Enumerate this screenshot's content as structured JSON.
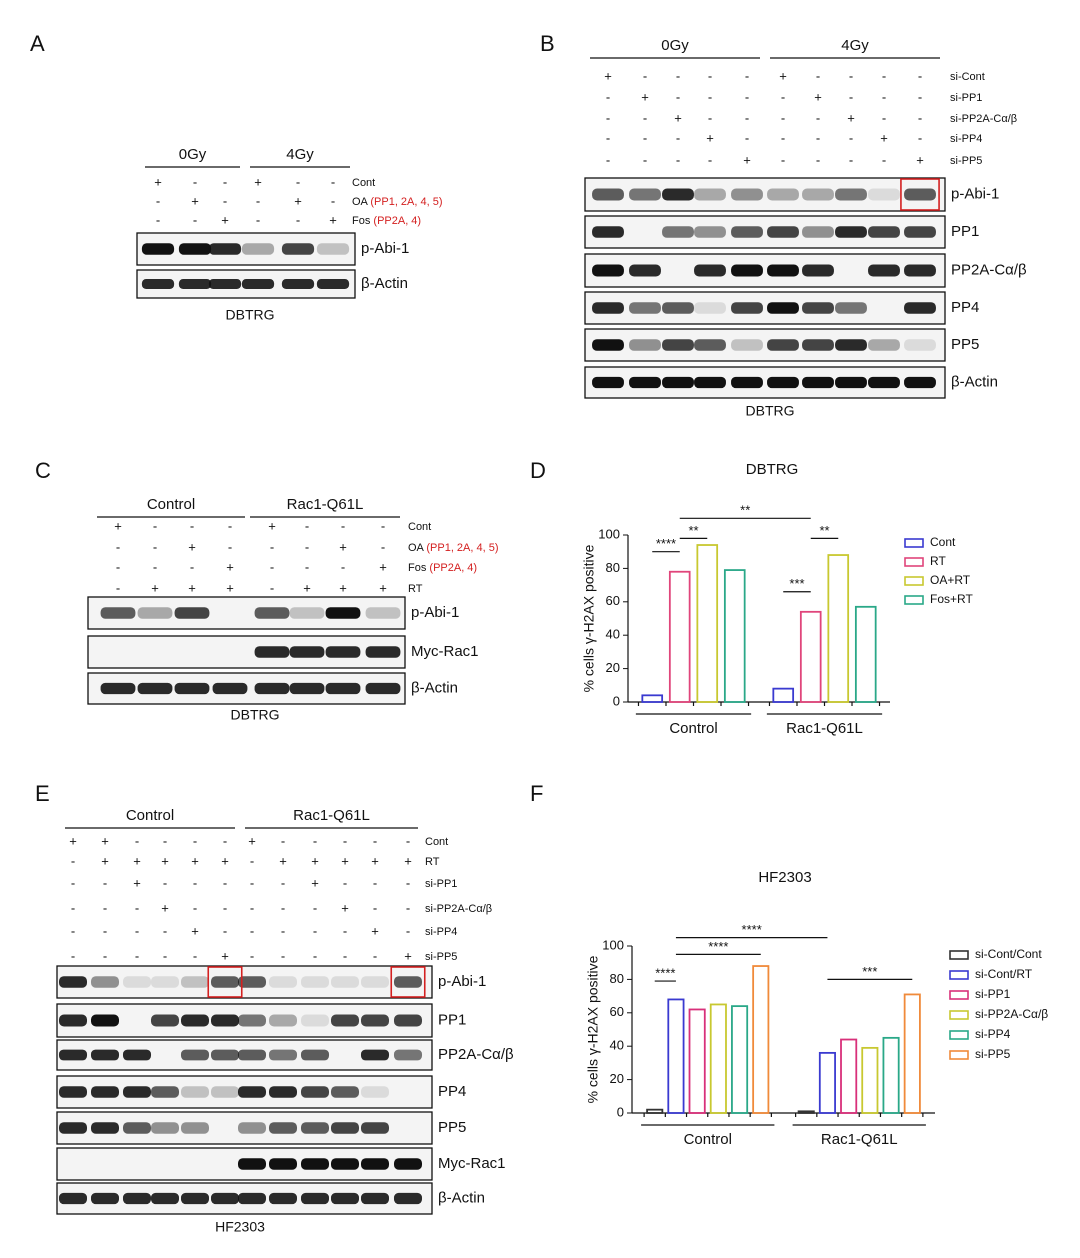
{
  "panels": {
    "A": {
      "letter": "A",
      "groups": [
        "0Gy",
        "4Gy"
      ],
      "rows": [
        {
          "label": "Cont",
          "signs": [
            "+",
            "-",
            "-",
            "+",
            "-",
            "-"
          ]
        },
        {
          "label": "OA",
          "note": "(PP1, 2A, 4, 5)",
          "signs": [
            "-",
            "+",
            "-",
            "-",
            "+",
            "-"
          ]
        },
        {
          "label": "Fos",
          "note": "(PP2A, 4)",
          "signs": [
            "-",
            "-",
            "+",
            "-",
            "-",
            "+"
          ]
        }
      ],
      "blots": [
        "p-Abi-1",
        "β-Actin"
      ],
      "cell": "DBTRG"
    },
    "B": {
      "letter": "B",
      "groups": [
        "0Gy",
        "4Gy"
      ],
      "rows": [
        {
          "label": "si-Cont",
          "signs": [
            "+",
            "-",
            "-",
            "-",
            "-",
            "+",
            "-",
            "-",
            "-",
            "-"
          ]
        },
        {
          "label": "si-PP1",
          "signs": [
            "-",
            "+",
            "-",
            "-",
            "-",
            "-",
            "+",
            "-",
            "-",
            "-"
          ]
        },
        {
          "label": "si-PP2A-Cα/β",
          "signs": [
            "-",
            "-",
            "+",
            "-",
            "-",
            "-",
            "-",
            "+",
            "-",
            "-"
          ]
        },
        {
          "label": "si-PP4",
          "signs": [
            "-",
            "-",
            "-",
            "+",
            "-",
            "-",
            "-",
            "-",
            "+",
            "-"
          ]
        },
        {
          "label": "si-PP5",
          "signs": [
            "-",
            "-",
            "-",
            "-",
            "+",
            "-",
            "-",
            "-",
            "-",
            "+"
          ]
        }
      ],
      "blots": [
        "p-Abi-1",
        "PP1",
        "PP2A-Cα/β",
        "PP4",
        "PP5",
        "β-Actin"
      ],
      "cell": "DBTRG"
    },
    "C": {
      "letter": "C",
      "groups": [
        "Control",
        "Rac1-Q61L"
      ],
      "rows": [
        {
          "label": "Cont",
          "signs": [
            "+",
            "-",
            "-",
            "-",
            "+",
            "-",
            "-",
            "-"
          ]
        },
        {
          "label": "OA",
          "note": "(PP1, 2A, 4, 5)",
          "signs": [
            "-",
            "-",
            "+",
            "-",
            "-",
            "-",
            "+",
            "-"
          ]
        },
        {
          "label": "Fos",
          "note": "(PP2A, 4)",
          "signs": [
            "-",
            "-",
            "-",
            "+",
            "-",
            "-",
            "-",
            "+"
          ]
        },
        {
          "label": "RT",
          "signs": [
            "-",
            "+",
            "+",
            "+",
            "-",
            "+",
            "+",
            "+"
          ]
        }
      ],
      "blots": [
        "p-Abi-1",
        "Myc-Rac1",
        "β-Actin"
      ],
      "cell": "DBTRG"
    },
    "E": {
      "letter": "E",
      "groups": [
        "Control",
        "Rac1-Q61L"
      ],
      "rows": [
        {
          "label": "Cont",
          "signs": [
            "+",
            "+",
            "-",
            "-",
            "-",
            "-",
            "+",
            "-",
            "-",
            "-",
            "-",
            "-"
          ]
        },
        {
          "label": "RT",
          "signs": [
            "-",
            "+",
            "+",
            "+",
            "+",
            "+",
            "-",
            "+",
            "+",
            "+",
            "+",
            "+"
          ]
        },
        {
          "label": "si-PP1",
          "signs": [
            "-",
            "-",
            "+",
            "-",
            "-",
            "-",
            "-",
            "-",
            "+",
            "-",
            "-",
            "-"
          ]
        },
        {
          "label": "si-PP2A-Cα/β",
          "signs": [
            "-",
            "-",
            "-",
            "+",
            "-",
            "-",
            "-",
            "-",
            "-",
            "+",
            "-",
            "-"
          ]
        },
        {
          "label": "si-PP4",
          "signs": [
            "-",
            "-",
            "-",
            "-",
            "+",
            "-",
            "-",
            "-",
            "-",
            "-",
            "+",
            "-"
          ]
        },
        {
          "label": "si-PP5",
          "signs": [
            "-",
            "-",
            "-",
            "-",
            "-",
            "+",
            "-",
            "-",
            "-",
            "-",
            "-",
            "+"
          ]
        }
      ],
      "blots": [
        "p-Abi-1",
        "PP1",
        "PP2A-Cα/β",
        "PP4",
        "PP5",
        "Myc-Rac1",
        "β-Actin"
      ],
      "cell": "HF2303"
    }
  },
  "chart_data": [
    {
      "type": "bar",
      "letter": "D",
      "title": "DBTRG",
      "ylabel": "% cells γ-H2AX positive",
      "categories": [
        "Control",
        "Rac1-Q61L"
      ],
      "series": [
        {
          "name": "Cont",
          "color": "#3a3ad0",
          "values": [
            4,
            8
          ]
        },
        {
          "name": "RT",
          "color": "#e0457b",
          "values": [
            78,
            54
          ]
        },
        {
          "name": "OA+RT",
          "color": "#c8c830",
          "values": [
            94,
            88
          ]
        },
        {
          "name": "Fos+RT",
          "color": "#2aa888",
          "values": [
            79,
            57
          ]
        }
      ],
      "ylim": [
        0,
        100
      ],
      "yticks": [
        0,
        20,
        40,
        60,
        80,
        100
      ],
      "annotations": [
        "****",
        "**",
        "**",
        "***",
        "**"
      ]
    },
    {
      "type": "bar",
      "letter": "F",
      "title": "HF2303",
      "ylabel": "% cells γ-H2AX positive",
      "categories": [
        "Control",
        "Rac1-Q61L"
      ],
      "series": [
        {
          "name": "si-Cont/Cont",
          "color": "#333333",
          "values": [
            2,
            1
          ]
        },
        {
          "name": "si-Cont/RT",
          "color": "#3a3ad0",
          "values": [
            68,
            36
          ]
        },
        {
          "name": "si-PP1",
          "color": "#d8307a",
          "values": [
            62,
            44
          ]
        },
        {
          "name": "si-PP2A-Cα/β",
          "color": "#c8c830",
          "values": [
            65,
            39
          ]
        },
        {
          "name": "si-PP4",
          "color": "#2aa888",
          "values": [
            64,
            45
          ]
        },
        {
          "name": "si-PP5",
          "color": "#f08a3a",
          "values": [
            88,
            71
          ]
        }
      ],
      "ylim": [
        0,
        100
      ],
      "yticks": [
        0,
        20,
        40,
        60,
        80,
        100
      ],
      "annotations": [
        "****",
        "****",
        "****",
        "***"
      ]
    }
  ]
}
